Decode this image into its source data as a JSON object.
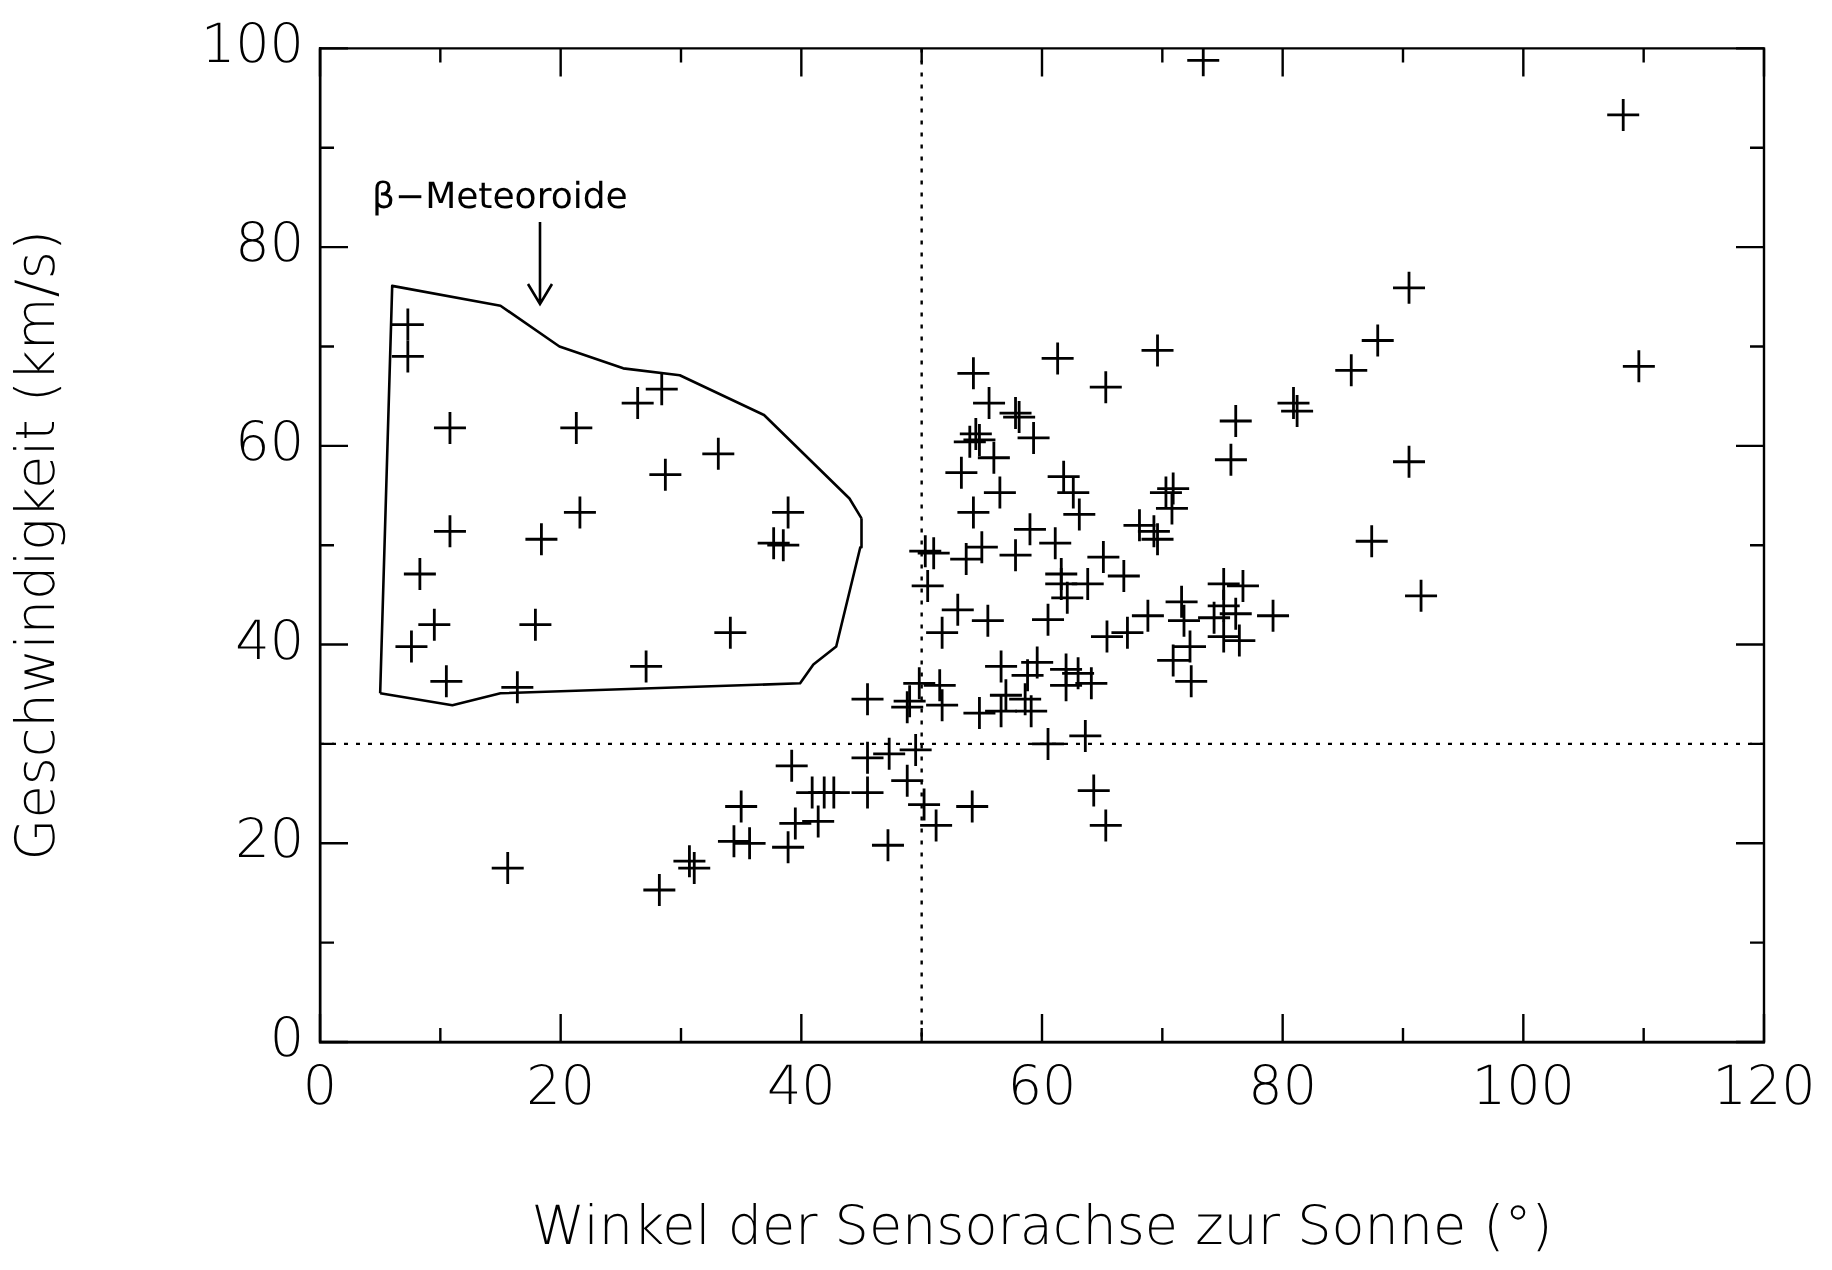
{
  "chart_data": {
    "type": "scatter",
    "xlabel": "Winkel der Sensorachse zur Sonne (°)",
    "ylabel": "Geschwindigkeit (km/s)",
    "annotations": [
      "β−Meteoroide"
    ],
    "xlim": [
      0,
      120
    ],
    "ylim": [
      0,
      100
    ],
    "xticks": [
      0,
      {
        "value": 10,
        "label": null
      },
      20,
      {
        "value": 30,
        "label": null
      },
      40,
      {
        "value": 50,
        "label": null
      },
      60,
      {
        "value": 70,
        "label": null
      },
      80,
      {
        "value": 90,
        "label": null
      },
      100,
      {
        "value": 110,
        "label": null
      },
      120
    ],
    "yticks": [
      0,
      {
        "value": 10,
        "label": null
      },
      20,
      {
        "value": 30,
        "label": null
      },
      40,
      {
        "value": 50,
        "label": null
      },
      60,
      {
        "value": 70,
        "label": null
      },
      80,
      {
        "value": 90,
        "label": null
      },
      100
    ],
    "grid": false,
    "legend": false,
    "marker": "cross",
    "ref_lines": [
      {
        "axis": "x",
        "value": 50,
        "line_style": "dotted",
        "color": "#000000"
      },
      {
        "axis": "y",
        "value": 30,
        "line_style": "dotted",
        "color": "#000000"
      }
    ],
    "series": [
      {
        "color": "#000000",
        "x": [
          7.3,
          7.3,
          10.8,
          21.3,
          26.4,
          28.4,
          33.1,
          28.7,
          21.6,
          10.8,
          18.4,
          38.9,
          37.7,
          38.5,
          8.3,
          9.5,
          7.6,
          17.9,
          34.1,
          10.5,
          27.1,
          16.4,
          45.5,
          48.8,
          49.0,
          49.8,
          51.5,
          51.7,
          39.2,
          45.5,
          47.3,
          49.5,
          35.0,
          40.9,
          41.9,
          42.7,
          45.5,
          48.8,
          50.2,
          51.2,
          39.5,
          41.4,
          34.4,
          35.7,
          38.9,
          47.2,
          30.7,
          31.1,
          28.2,
          15.6,
          61.3,
          69.6,
          85.7,
          54.3,
          65.3,
          55.6,
          57.8,
          58.1,
          80.9,
          81.2,
          76.1,
          54.5,
          54.8,
          59.3,
          54.0,
          56.0,
          75.7,
          53.3,
          61.8,
          62.6,
          56.5,
          70.3,
          70.9,
          70.8,
          63.1,
          54.3,
          59.0,
          68.1,
          69.3,
          69.6,
          61.1,
          55.0,
          50.3,
          51.0,
          53.7,
          57.8,
          65.1,
          66.8,
          50.5,
          61.6,
          61.6,
          63.8,
          62.1,
          53.0,
          75.1,
          76.7,
          71.6,
          75.1,
          76.1,
          79.2,
          68.8,
          71.8,
          74.3,
          51.7,
          55.5,
          60.5,
          65.4,
          67.1,
          75.1,
          76.4,
          72.3,
          70.9,
          72.4,
          56.6,
          59.6,
          58.8,
          62.0,
          63.0,
          62.0,
          64.1,
          57.0,
          58.6,
          54.8,
          56.6,
          59.1,
          60.5,
          63.6,
          54.2,
          64.3,
          65.3,
          108.3,
          90.5,
          87.9,
          109.6,
          90.5,
          87.4,
          91.5,
          73.4
        ],
        "values": [
          72.2,
          69.0,
          61.8,
          61.8,
          64.3,
          65.7,
          59.2,
          57.1,
          53.3,
          51.4,
          50.6,
          53.3,
          50.2,
          50.0,
          47.1,
          42.0,
          39.8,
          42.0,
          41.2,
          36.3,
          37.8,
          35.7,
          34.5,
          33.7,
          34.3,
          36.1,
          35.9,
          33.9,
          27.8,
          28.6,
          29.0,
          29.4,
          23.7,
          25.1,
          25.1,
          25.1,
          25.1,
          26.3,
          23.9,
          21.8,
          22.0,
          22.2,
          20.2,
          20.0,
          19.6,
          19.8,
          18.2,
          17.5,
          15.3,
          17.5,
          68.8,
          69.6,
          67.6,
          67.3,
          65.9,
          64.3,
          63.3,
          62.9,
          64.3,
          63.5,
          62.5,
          61.2,
          60.6,
          60.8,
          60.4,
          58.8,
          58.6,
          57.3,
          56.9,
          55.3,
          55.3,
          55.3,
          55.7,
          53.7,
          53.1,
          53.3,
          51.6,
          52.0,
          51.4,
          50.6,
          50.2,
          49.8,
          49.4,
          49.2,
          48.6,
          49.0,
          48.8,
          46.9,
          45.9,
          47.1,
          46.1,
          46.1,
          44.7,
          43.5,
          46.1,
          45.9,
          44.3,
          43.9,
          43.1,
          42.9,
          42.9,
          42.4,
          42.7,
          41.2,
          42.4,
          42.5,
          40.8,
          41.2,
          40.8,
          40.4,
          39.8,
          38.4,
          36.3,
          37.8,
          38.2,
          36.9,
          37.5,
          37.1,
          35.9,
          36.1,
          34.9,
          34.5,
          33.1,
          33.3,
          33.3,
          30.0,
          30.8,
          23.7,
          25.3,
          21.8,
          93.3,
          75.9,
          70.6,
          68.0,
          58.4,
          50.4,
          44.9,
          98.8
        ]
      },
      {
        "type": "line",
        "color": "#000000",
        "marker": "none",
        "line_style": "solid",
        "x": [
          5.0,
          6.0,
          15.0,
          19.9,
          25.2,
          29.9,
          36.9,
          44.0,
          45.0
        ],
        "values": [
          35.1,
          76.1,
          74.1,
          70.0,
          67.8,
          67.1,
          63.1,
          54.7,
          52.7
        ]
      },
      {
        "type": "line",
        "color": "#000000",
        "marker": "none",
        "line_style": "solid",
        "x": [
          5.0,
          11.0,
          15.0,
          39.9,
          41.0,
          42.9,
          44.9,
          45.0
        ],
        "values": [
          35.1,
          33.9,
          35.1,
          36.1,
          38.0,
          39.8,
          49.8,
          52.7
        ]
      }
    ]
  }
}
